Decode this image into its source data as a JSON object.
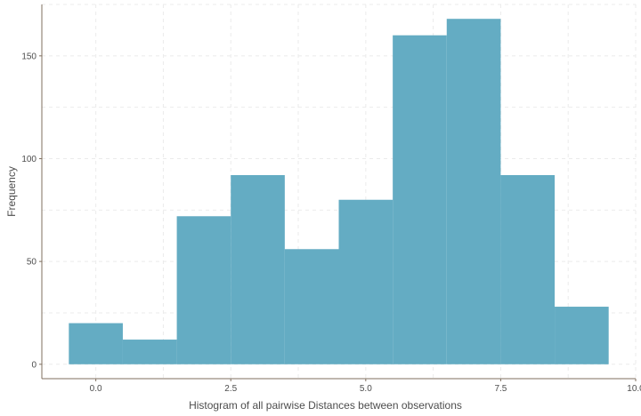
{
  "chart_data": {
    "type": "bar",
    "subtype": "histogram",
    "bins": [
      {
        "x0": -0.5,
        "x1": 0.5,
        "count": 20
      },
      {
        "x0": 0.5,
        "x1": 1.5,
        "count": 12
      },
      {
        "x0": 1.5,
        "x1": 2.5,
        "count": 72
      },
      {
        "x0": 2.5,
        "x1": 3.5,
        "count": 92
      },
      {
        "x0": 3.5,
        "x1": 4.5,
        "count": 56
      },
      {
        "x0": 4.5,
        "x1": 5.5,
        "count": 80
      },
      {
        "x0": 5.5,
        "x1": 6.5,
        "count": 160
      },
      {
        "x0": 6.5,
        "x1": 7.5,
        "count": 168
      },
      {
        "x0": 7.5,
        "x1": 8.5,
        "count": 92
      },
      {
        "x0": 8.5,
        "x1": 9.5,
        "count": 28
      }
    ],
    "title": "",
    "xlabel": "Histogram of all pairwise Distances between observations",
    "ylabel": "Frequency",
    "xlim": [
      -1.0,
      10.0
    ],
    "ylim": [
      -7,
      175
    ],
    "xticks": [
      0.0,
      2.5,
      5.0,
      7.5,
      10.0
    ],
    "xtick_labels": [
      "0.0",
      "2.5",
      "5.0",
      "7.5",
      "10.0"
    ],
    "yticks": [
      0,
      50,
      100,
      150
    ],
    "ytick_labels": [
      "0",
      "50",
      "100",
      "150"
    ],
    "grid": true,
    "grid_style": "dashed",
    "legend": "none",
    "bar_color": "#64acc3",
    "grid_color": "#ebebeb",
    "axis_color": "#7f6f5f"
  }
}
